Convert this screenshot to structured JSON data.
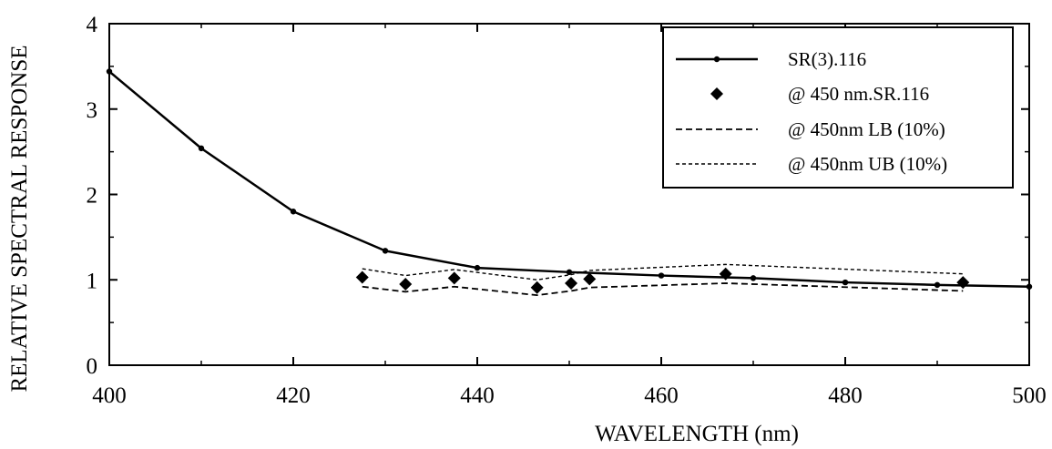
{
  "chart_data": {
    "type": "line",
    "title": "",
    "xlabel": "WAVELENGTH (nm)",
    "ylabel": "RELATIVE SPECTRAL RESPONSE",
    "xlim": [
      400,
      500
    ],
    "ylim": [
      0,
      4
    ],
    "xticks": [
      400,
      420,
      440,
      460,
      480,
      500
    ],
    "yticks": [
      0,
      1,
      2,
      3,
      4
    ],
    "grid": false,
    "legend_position": "top-right",
    "series": [
      {
        "name": "SR(3).116",
        "style": "solid-with-small-dots",
        "x": [
          400,
          410,
          420,
          430,
          440,
          450,
          460,
          470,
          480,
          490,
          500
        ],
        "y": [
          3.44,
          2.54,
          1.8,
          1.34,
          1.14,
          1.09,
          1.05,
          1.02,
          0.97,
          0.94,
          0.92
        ]
      },
      {
        "name": "@ 450 nm.SR.116",
        "style": "diamond-markers",
        "x": [
          427.5,
          432.2,
          437.5,
          446.5,
          450.2,
          452.2,
          467,
          492.8
        ],
        "y": [
          1.03,
          0.95,
          1.02,
          0.91,
          0.96,
          1.01,
          1.07,
          0.97
        ]
      },
      {
        "name": "@ 450nm LB (10%)",
        "style": "dashed",
        "x": [
          427.5,
          432.2,
          437.5,
          446.5,
          450.2,
          452.2,
          467,
          492.8
        ],
        "y": [
          0.92,
          0.86,
          0.92,
          0.82,
          0.87,
          0.91,
          0.96,
          0.87
        ]
      },
      {
        "name": "@ 450nm UB (10%)",
        "style": "dashed-fine",
        "x": [
          427.5,
          432.2,
          437.5,
          446.5,
          450.2,
          452.2,
          467,
          492.8
        ],
        "y": [
          1.13,
          1.05,
          1.12,
          1.0,
          1.06,
          1.11,
          1.18,
          1.07
        ]
      }
    ]
  }
}
